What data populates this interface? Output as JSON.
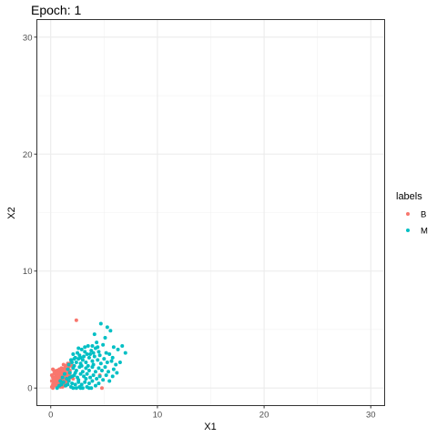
{
  "chart_data": {
    "type": "scatter",
    "title": "Epoch: 1",
    "xlabel": "X1",
    "ylabel": "X2",
    "xlim": [
      -1.3,
      31.3
    ],
    "ylim": [
      -1.5,
      31.5
    ],
    "xticks": [
      0,
      10,
      20,
      30
    ],
    "yticks": [
      0,
      10,
      20,
      30
    ],
    "x_minor": [
      5,
      15,
      25
    ],
    "y_minor": [
      5,
      15,
      25
    ],
    "grid": true,
    "legend": {
      "title": "labels",
      "position": "right",
      "entries": [
        {
          "name": "B",
          "color": "#F8766D"
        },
        {
          "name": "M",
          "color": "#00BFC4"
        }
      ]
    },
    "series": [
      {
        "name": "B",
        "color": "#F8766D",
        "points": [
          [
            2.4,
            5.8
          ],
          [
            4.8,
            0.0
          ],
          [
            4.6,
            1.1
          ],
          [
            0.1,
            0.1
          ],
          [
            0.2,
            0.3
          ],
          [
            0.3,
            0.5
          ],
          [
            0.4,
            0.2
          ],
          [
            0.5,
            0.6
          ],
          [
            0.6,
            0.4
          ],
          [
            0.7,
            0.8
          ],
          [
            0.8,
            0.3
          ],
          [
            0.9,
            1.0
          ],
          [
            1.0,
            0.6
          ],
          [
            1.1,
            1.2
          ],
          [
            1.2,
            0.9
          ],
          [
            1.3,
            1.4
          ],
          [
            1.4,
            1.1
          ],
          [
            1.5,
            1.6
          ],
          [
            1.6,
            1.3
          ],
          [
            1.7,
            1.8
          ],
          [
            0.2,
            0.9
          ],
          [
            0.3,
            1.2
          ],
          [
            0.4,
            1.4
          ],
          [
            0.5,
            1.0
          ],
          [
            0.6,
            1.5
          ],
          [
            0.7,
            0.2
          ],
          [
            0.8,
            1.6
          ],
          [
            0.9,
            0.5
          ],
          [
            1.0,
            1.7
          ],
          [
            1.1,
            0.4
          ],
          [
            1.2,
            2.0
          ],
          [
            1.3,
            0.7
          ],
          [
            1.4,
            1.9
          ],
          [
            1.5,
            0.9
          ],
          [
            1.6,
            2.1
          ],
          [
            1.8,
            1.5
          ],
          [
            1.9,
            2.2
          ],
          [
            0.1,
            0.6
          ],
          [
            0.2,
            0.0
          ],
          [
            0.3,
            0.8
          ],
          [
            0.4,
            0.9
          ],
          [
            0.5,
            0.2
          ],
          [
            0.6,
            1.1
          ],
          [
            0.7,
            1.3
          ],
          [
            0.8,
            0.9
          ],
          [
            0.9,
            1.4
          ],
          [
            1.0,
            0.2
          ],
          [
            1.1,
            0.8
          ],
          [
            1.2,
            0.3
          ],
          [
            1.3,
            1.0
          ],
          [
            1.4,
            0.5
          ],
          [
            1.5,
            1.2
          ],
          [
            1.6,
            0.6
          ],
          [
            1.7,
            1.1
          ],
          [
            0.3,
            0.3
          ],
          [
            0.5,
            0.4
          ],
          [
            0.7,
            0.6
          ],
          [
            0.9,
            0.7
          ],
          [
            1.1,
            1.5
          ],
          [
            1.3,
            1.7
          ],
          [
            0.2,
            1.6
          ],
          [
            0.4,
            0.4
          ],
          [
            0.6,
            0.7
          ],
          [
            0.8,
            1.2
          ],
          [
            1.0,
            1.0
          ],
          [
            1.2,
            1.3
          ],
          [
            0.1,
            1.1
          ],
          [
            0.3,
            1.5
          ],
          [
            0.5,
            1.3
          ],
          [
            0.7,
            1.0
          ],
          [
            0.9,
            0.1
          ],
          [
            1.1,
            0.1
          ],
          [
            1.3,
            0.2
          ],
          [
            1.5,
            0.4
          ],
          [
            1.7,
            0.7
          ],
          [
            1.9,
            1.0
          ],
          [
            2.0,
            1.9
          ],
          [
            2.1,
            0.8
          ]
        ]
      },
      {
        "name": "M",
        "color": "#00BFC4",
        "points": [
          [
            4.7,
            5.5
          ],
          [
            5.3,
            5.2
          ],
          [
            5.6,
            4.9
          ],
          [
            4.1,
            4.6
          ],
          [
            5.1,
            4.3
          ],
          [
            4.3,
            3.9
          ],
          [
            4.9,
            3.7
          ],
          [
            5.9,
            3.5
          ],
          [
            6.3,
            3.3
          ],
          [
            7.0,
            3.0
          ],
          [
            6.7,
            3.6
          ],
          [
            5.5,
            2.9
          ],
          [
            4.2,
            3.4
          ],
          [
            3.8,
            3.2
          ],
          [
            3.5,
            3.6
          ],
          [
            3.2,
            3.1
          ],
          [
            2.9,
            3.3
          ],
          [
            2.7,
            2.8
          ],
          [
            2.5,
            3.0
          ],
          [
            2.3,
            2.6
          ],
          [
            2.1,
            2.9
          ],
          [
            1.9,
            2.4
          ],
          [
            2.4,
            2.2
          ],
          [
            2.6,
            2.5
          ],
          [
            2.8,
            2.1
          ],
          [
            3.0,
            2.4
          ],
          [
            3.3,
            2.2
          ],
          [
            3.6,
            2.6
          ],
          [
            3.9,
            2.3
          ],
          [
            4.1,
            2.7
          ],
          [
            4.4,
            2.4
          ],
          [
            4.7,
            2.1
          ],
          [
            5.0,
            2.5
          ],
          [
            5.3,
            2.2
          ],
          [
            5.7,
            2.3
          ],
          [
            6.1,
            2.0
          ],
          [
            6.5,
            2.2
          ],
          [
            5.9,
            1.6
          ],
          [
            5.4,
            1.4
          ],
          [
            5.1,
            1.8
          ],
          [
            4.8,
            1.5
          ],
          [
            4.5,
            1.7
          ],
          [
            4.2,
            1.4
          ],
          [
            3.9,
            1.8
          ],
          [
            3.6,
            1.5
          ],
          [
            3.3,
            1.7
          ],
          [
            3.0,
            1.4
          ],
          [
            2.7,
            1.8
          ],
          [
            2.4,
            1.5
          ],
          [
            2.1,
            1.7
          ],
          [
            1.8,
            1.3
          ],
          [
            2.2,
            1.1
          ],
          [
            2.5,
            0.9
          ],
          [
            2.8,
            1.2
          ],
          [
            3.1,
            1.0
          ],
          [
            3.4,
            1.2
          ],
          [
            3.7,
            0.9
          ],
          [
            4.0,
            1.1
          ],
          [
            4.3,
            0.8
          ],
          [
            4.6,
            1.0
          ],
          [
            4.9,
            0.7
          ],
          [
            5.2,
            1.1
          ],
          [
            5.8,
            1.0
          ],
          [
            6.2,
            1.3
          ],
          [
            5.5,
            0.6
          ],
          [
            3.6,
            0.4
          ],
          [
            3.2,
            0.5
          ],
          [
            2.9,
            0.3
          ],
          [
            2.6,
            0.5
          ],
          [
            2.3,
            0.3
          ],
          [
            2.0,
            0.4
          ],
          [
            1.7,
            0.6
          ],
          [
            1.4,
            0.2
          ],
          [
            1.2,
            0.5
          ],
          [
            1.0,
            0.3
          ],
          [
            1.5,
            0.8
          ],
          [
            1.8,
            0.9
          ],
          [
            2.1,
            0.0
          ],
          [
            2.4,
            0.0
          ],
          [
            2.7,
            0.1
          ],
          [
            3.0,
            0.0
          ],
          [
            3.4,
            0.1
          ],
          [
            3.8,
            0.0
          ],
          [
            4.2,
            0.2
          ],
          [
            4.5,
            0.4
          ],
          [
            2.6,
            0.7
          ],
          [
            3.3,
            0.8
          ],
          [
            3.9,
            0.6
          ],
          [
            4.0,
            2.0
          ],
          [
            3.5,
            1.9
          ],
          [
            2.9,
            1.9
          ],
          [
            2.2,
            1.9
          ],
          [
            1.6,
            1.6
          ],
          [
            1.3,
            1.2
          ],
          [
            1.1,
            0.9
          ],
          [
            0.9,
            0.6
          ],
          [
            3.1,
            2.7
          ],
          [
            3.7,
            2.9
          ],
          [
            4.5,
            3.1
          ],
          [
            5.2,
            3.0
          ],
          [
            5.8,
            2.6
          ],
          [
            2.0,
            2.2
          ],
          [
            1.7,
            2.0
          ],
          [
            2.2,
            2.5
          ],
          [
            2.8,
            2.6
          ],
          [
            3.4,
            2.9
          ],
          [
            4.0,
            3.0
          ],
          [
            4.6,
            2.8
          ],
          [
            0.8,
            0.2
          ],
          [
            0.6,
            0.0
          ],
          [
            1.9,
            0.1
          ],
          [
            2.8,
            0.0
          ],
          [
            3.6,
            0.0
          ],
          [
            1.6,
            0.3
          ],
          [
            3.2,
            3.5
          ],
          [
            2.6,
            3.4
          ],
          [
            3.9,
            3.6
          ],
          [
            4.4,
            3.5
          ],
          [
            2.3,
            1.3
          ],
          [
            2.0,
            1.0
          ]
        ]
      }
    ]
  }
}
